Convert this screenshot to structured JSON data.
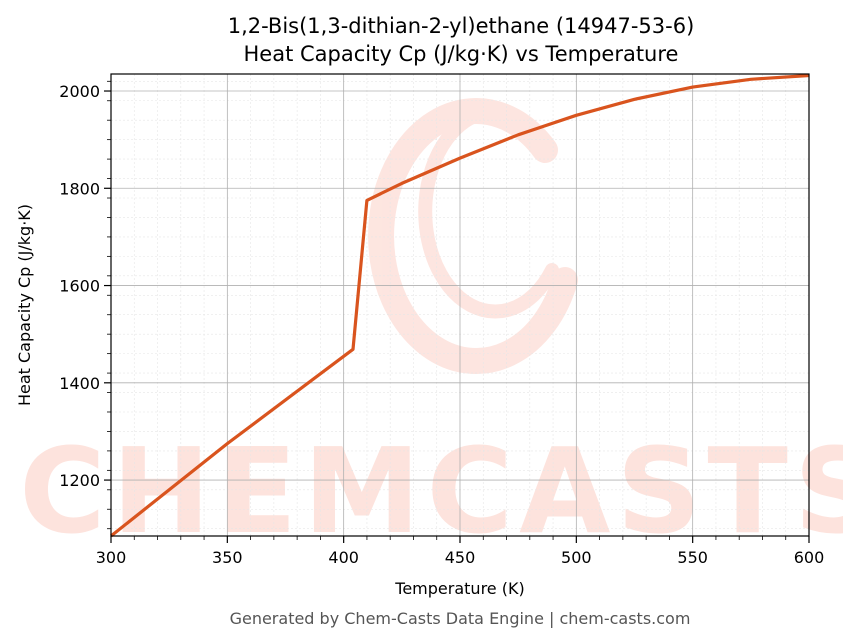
{
  "colors": {
    "series": "#d9541e",
    "watermark": "#fde3dd",
    "grid_major": "#b0b0b0",
    "grid_minor": "#e6e6e6",
    "footer": "#555555"
  },
  "watermark": {
    "text": "CHEMCASTS",
    "icon": "chemcasts-logo-icon"
  },
  "footer": {
    "text": "Generated by Chem-Casts Data Engine | chem-casts.com"
  },
  "chart_data": {
    "type": "line",
    "title_line1": "1,2-Bis(1,3-dithian-2-yl)ethane (14947-53-6)",
    "title_line2": "Heat Capacity Cp (J/kg·K) vs Temperature",
    "xlabel": "Temperature (K)",
    "ylabel": "Heat Capacity Cp (J/kg·K)",
    "xlim": [
      300,
      600
    ],
    "ylim": [
      1085,
      2035
    ],
    "x_ticks": [
      300,
      350,
      400,
      450,
      500,
      550,
      600
    ],
    "y_ticks": [
      1200,
      1400,
      1600,
      1800,
      2000
    ],
    "grid": true,
    "series": [
      {
        "points": [
          [
            300,
            1085
          ],
          [
            350,
            1275
          ],
          [
            404,
            1469
          ],
          [
            410,
            1775
          ],
          [
            425,
            1810
          ],
          [
            450,
            1862
          ],
          [
            475,
            1910
          ],
          [
            500,
            1950
          ],
          [
            525,
            1983
          ],
          [
            550,
            2008
          ],
          [
            575,
            2024
          ],
          [
            600,
            2032
          ]
        ]
      }
    ]
  }
}
